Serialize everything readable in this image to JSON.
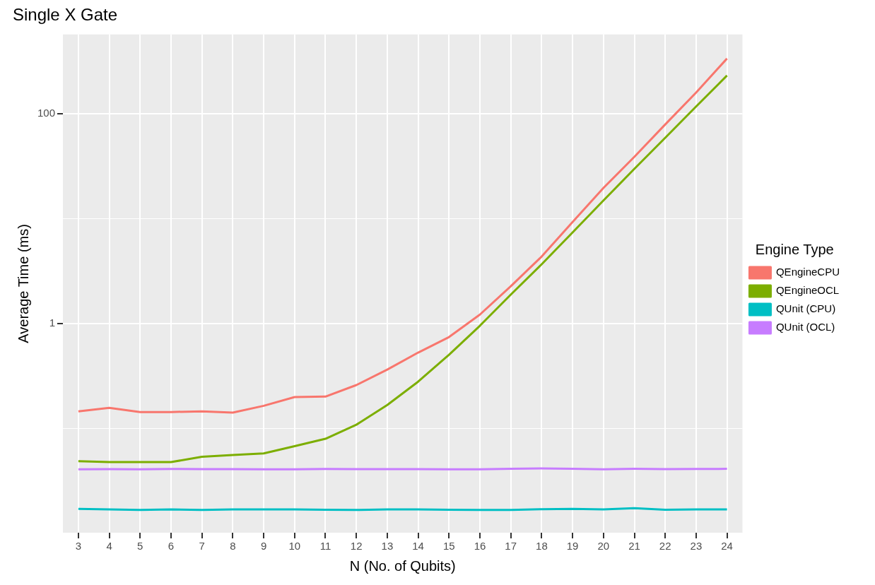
{
  "chart_data": {
    "type": "line",
    "title": "Single X Gate",
    "xlabel": "N (No. of Qubits)",
    "ylabel": "Average Time (ms)",
    "legend_title": "Engine Type",
    "legend": "right",
    "log": "y",
    "grid": true,
    "categories": [
      "3",
      "4",
      "5",
      "6",
      "7",
      "8",
      "9",
      "10",
      "11",
      "12",
      "13",
      "14",
      "15",
      "16",
      "17",
      "18",
      "19",
      "20",
      "21",
      "22",
      "23",
      "24"
    ],
    "ylim": [
      0.0102,
      568
    ],
    "yticks": [
      {
        "value": 0.1,
        "label": null
      },
      1,
      {
        "value": 10,
        "label": null
      },
      100
    ],
    "series": [
      {
        "name": "QEngineCPU",
        "color": "#f8766d",
        "values": [
          0.146,
          0.158,
          0.144,
          0.144,
          0.146,
          0.142,
          0.165,
          0.2,
          0.202,
          0.26,
          0.365,
          0.53,
          0.745,
          1.22,
          2.27,
          4.36,
          9.3,
          19.6,
          38.8,
          79,
          159,
          335
        ]
      },
      {
        "name": "QEngineOCL",
        "color": "#7cae00",
        "values": [
          0.049,
          0.048,
          0.048,
          0.048,
          0.054,
          0.056,
          0.058,
          0.068,
          0.08,
          0.109,
          0.168,
          0.28,
          0.506,
          0.955,
          1.89,
          3.68,
          7.4,
          14.9,
          29.8,
          59,
          117,
          231
        ]
      },
      {
        "name": "QUnit (CPU)",
        "color": "#00bfc4",
        "values": [
          0.0172,
          0.017,
          0.0168,
          0.017,
          0.0168,
          0.017,
          0.017,
          0.017,
          0.0169,
          0.0168,
          0.017,
          0.017,
          0.0169,
          0.0168,
          0.0168,
          0.0171,
          0.0172,
          0.017,
          0.0175,
          0.0169,
          0.017,
          0.017
        ]
      },
      {
        "name": "QUnit (OCL)",
        "color": "#c77cff",
        "values": [
          0.041,
          0.0412,
          0.041,
          0.0413,
          0.0412,
          0.0411,
          0.041,
          0.041,
          0.0413,
          0.0412,
          0.0412,
          0.0411,
          0.041,
          0.041,
          0.0415,
          0.0418,
          0.0414,
          0.041,
          0.0414,
          0.0412,
          0.0413,
          0.0414
        ]
      }
    ]
  }
}
